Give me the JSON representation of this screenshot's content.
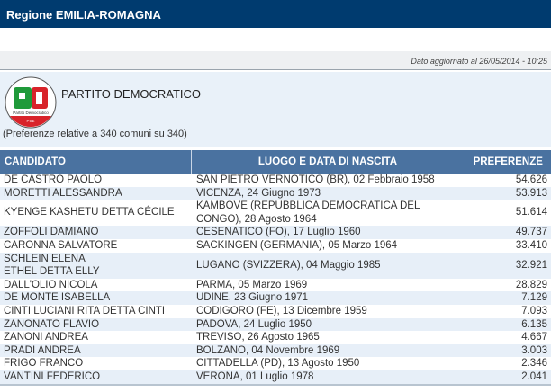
{
  "header": {
    "title": "Regione EMILIA-ROMAGNA"
  },
  "update": {
    "text": "Dato aggiornato al 26/05/2014 - 10:25"
  },
  "party": {
    "name": "PARTITO DEMOCRATICO",
    "logo_text": "Partito Democratico PSE",
    "subtitle": "(Preferenze relative a 340 comuni su 340)"
  },
  "table": {
    "headers": [
      "CANDIDATO",
      "LUOGO E DATA DI NASCITA",
      "PREFERENZE"
    ],
    "rows": [
      {
        "name": "DE CASTRO PAOLO",
        "birth": "SAN PIETRO VERNOTICO (BR),  02  Febbraio 1958",
        "votes": "54.626"
      },
      {
        "name": "MORETTI ALESSANDRA",
        "birth": "VICENZA,  24  Giugno 1973",
        "votes": "53.913"
      },
      {
        "name": "KYENGE KASHETU DETTA CÉCILE",
        "birth": "KAMBOVE (REPUBBLICA DEMOCRATICA DEL CONGO),  28  Agosto 1964",
        "votes": "51.614"
      },
      {
        "name": "ZOFFOLI DAMIANO",
        "birth": "CESENATICO (FO),  17  Luglio 1960",
        "votes": "49.737"
      },
      {
        "name": "CARONNA SALVATORE",
        "birth": "SACKINGEN (GERMANIA),  05  Marzo 1964",
        "votes": "33.410"
      },
      {
        "name": "SCHLEIN ELENA ETHEL DETTA ELLY",
        "birth": "LUGANO (SVIZZERA),  04  Maggio 1985",
        "votes": "32.921"
      },
      {
        "name": "DALL'OLIO NICOLA",
        "birth": "PARMA,  05  Marzo 1969",
        "votes": "28.829"
      },
      {
        "name": "DE MONTE ISABELLA",
        "birth": "UDINE,  23  Giugno 1971",
        "votes": "7.129"
      },
      {
        "name": "CINTI LUCIANI RITA DETTA CINTI",
        "birth": "CODIGORO (FE),  13  Dicembre 1959",
        "votes": "7.093"
      },
      {
        "name": "ZANONATO FLAVIO",
        "birth": "PADOVA,  24  Luglio 1950",
        "votes": "6.135"
      },
      {
        "name": "ZANONI ANDREA",
        "birth": "TREVISO,  26  Agosto 1965",
        "votes": "4.667"
      },
      {
        "name": "PRADI ANDREA",
        "birth": "BOLZANO,  04  Novembre 1969",
        "votes": "3.003"
      },
      {
        "name": "FRIGO FRANCO",
        "birth": "CITTADELLA (PD),  13  Agosto 1950",
        "votes": "2.346"
      },
      {
        "name": "VANTINI FEDERICO",
        "birth": "VERONA,  01  Luglio 1978",
        "votes": "2.041"
      }
    ]
  }
}
